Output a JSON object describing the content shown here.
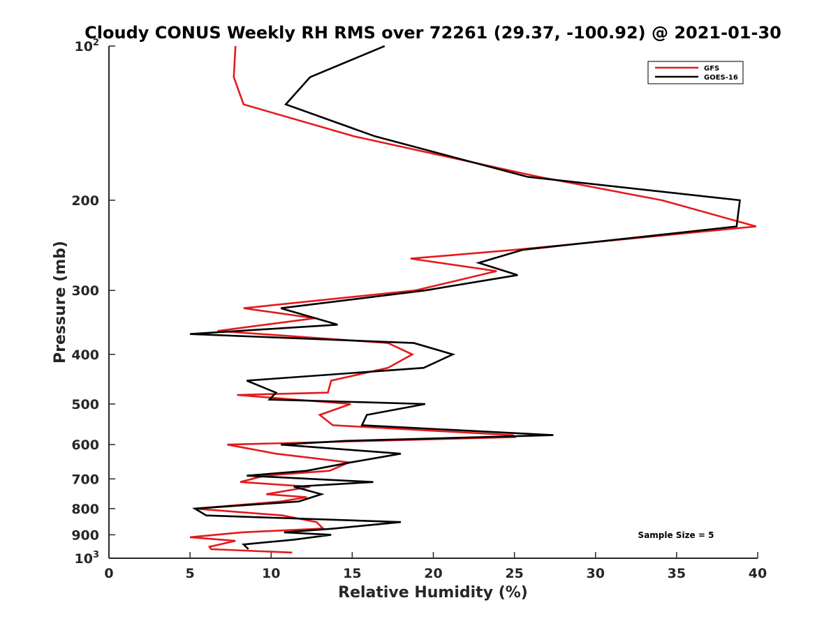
{
  "chart_data": {
    "type": "line",
    "title": "Cloudy CONUS Weekly RH RMS over 72261 (29.37, -100.92) @ 2021-01-30",
    "xlabel": "Relative Humidity (%)",
    "ylabel": "Pressure (mb)",
    "xlim": [
      0,
      40
    ],
    "ylim": [
      100,
      1000
    ],
    "y_scale": "log",
    "y_reversed": true,
    "x_ticks": [
      "0",
      "5",
      "10",
      "15",
      "20",
      "25",
      "30",
      "35",
      "40"
    ],
    "y_ticks": [
      {
        "value": 100,
        "base": "10",
        "exp": "2"
      },
      {
        "value": 200,
        "text": "200"
      },
      {
        "value": 300,
        "text": "300"
      },
      {
        "value": 400,
        "text": "400"
      },
      {
        "value": 500,
        "text": "500"
      },
      {
        "value": 600,
        "text": "600"
      },
      {
        "value": 700,
        "text": "700"
      },
      {
        "value": 800,
        "text": "800"
      },
      {
        "value": 900,
        "text": "900"
      },
      {
        "value": 1000,
        "base": "10",
        "exp": "3"
      }
    ],
    "grid": false,
    "legend_position": "top-right",
    "annotation": "Sample Size = 5",
    "series": [
      {
        "name": "GFS",
        "color": "#e41a1c",
        "points": [
          [
            7.8,
            100
          ],
          [
            7.7,
            115
          ],
          [
            8.3,
            130
          ],
          [
            15.1,
            150
          ],
          [
            26.5,
            180
          ],
          [
            34.1,
            200
          ],
          [
            39.9,
            225
          ],
          [
            25.0,
            250
          ],
          [
            18.6,
            260
          ],
          [
            23.9,
            275
          ],
          [
            18.9,
            300
          ],
          [
            8.3,
            325
          ],
          [
            12.7,
            340
          ],
          [
            6.7,
            360
          ],
          [
            17.2,
            380
          ],
          [
            18.7,
            400
          ],
          [
            17.2,
            425
          ],
          [
            13.7,
            450
          ],
          [
            13.5,
            475
          ],
          [
            7.9,
            480
          ],
          [
            14.9,
            500
          ],
          [
            13.0,
            525
          ],
          [
            13.8,
            550
          ],
          [
            24.9,
            575
          ],
          [
            25.0,
            580
          ],
          [
            7.3,
            600
          ],
          [
            10.3,
            625
          ],
          [
            14.8,
            650
          ],
          [
            13.6,
            675
          ],
          [
            9.6,
            690
          ],
          [
            8.1,
            710
          ],
          [
            12.4,
            725
          ],
          [
            9.7,
            750
          ],
          [
            12.2,
            760
          ],
          [
            10.6,
            775
          ],
          [
            5.3,
            800
          ],
          [
            10.7,
            825
          ],
          [
            12.8,
            850
          ],
          [
            13.2,
            875
          ],
          [
            8.2,
            890
          ],
          [
            5.0,
            910
          ],
          [
            7.8,
            925
          ],
          [
            6.2,
            950
          ],
          [
            6.3,
            960
          ],
          [
            11.3,
            975
          ]
        ]
      },
      {
        "name": "GOES-16",
        "color": "#000000",
        "points": [
          [
            17.0,
            100
          ],
          [
            12.4,
            115
          ],
          [
            10.9,
            130
          ],
          [
            16.4,
            150
          ],
          [
            25.8,
            180
          ],
          [
            38.9,
            200
          ],
          [
            38.7,
            225
          ],
          [
            25.5,
            250
          ],
          [
            22.8,
            265
          ],
          [
            25.2,
            280
          ],
          [
            19.5,
            300
          ],
          [
            10.6,
            325
          ],
          [
            14.1,
            350
          ],
          [
            5.0,
            365
          ],
          [
            18.8,
            380
          ],
          [
            21.2,
            400
          ],
          [
            19.4,
            425
          ],
          [
            8.5,
            450
          ],
          [
            10.3,
            475
          ],
          [
            9.9,
            490
          ],
          [
            19.5,
            500
          ],
          [
            15.9,
            525
          ],
          [
            15.6,
            550
          ],
          [
            27.4,
            575
          ],
          [
            14.6,
            590
          ],
          [
            10.6,
            600
          ],
          [
            18.0,
            625
          ],
          [
            14.9,
            650
          ],
          [
            12.2,
            675
          ],
          [
            8.5,
            690
          ],
          [
            16.3,
            710
          ],
          [
            11.4,
            725
          ],
          [
            13.1,
            750
          ],
          [
            11.7,
            775
          ],
          [
            5.3,
            800
          ],
          [
            6.0,
            825
          ],
          [
            18.0,
            850
          ],
          [
            13.9,
            875
          ],
          [
            10.8,
            890
          ],
          [
            13.7,
            900
          ],
          [
            11.4,
            920
          ],
          [
            8.3,
            940
          ],
          [
            8.6,
            960
          ]
        ]
      }
    ]
  }
}
